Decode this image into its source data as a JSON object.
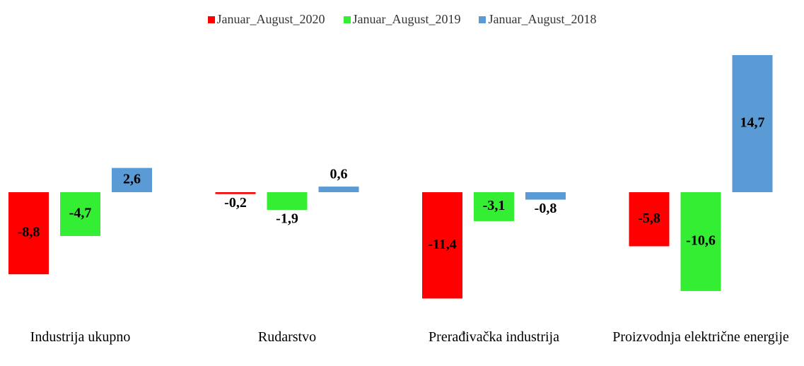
{
  "chart_data": {
    "type": "bar",
    "categories": [
      "Industrija ukupno",
      "Rudarstvo",
      "Prerađivačka industrija",
      "Proizvodnja električne energije"
    ],
    "series": [
      {
        "name": "Januar_August_2020",
        "color": "#ff0000",
        "values": [
          -8.8,
          -0.2,
          -11.4,
          -5.8
        ],
        "value_labels": [
          "-8,8",
          "-0,2",
          "-11,4",
          "-5,8"
        ]
      },
      {
        "name": "Januar_August_2019",
        "color": "#33ee33",
        "values": [
          -4.7,
          -1.9,
          -3.1,
          -10.6
        ],
        "value_labels": [
          "-4,7",
          "-1,9",
          "-3,1",
          "-10,6"
        ]
      },
      {
        "name": "Januar_August_2018",
        "color": "#5b9bd5",
        "values": [
          2.6,
          0.6,
          -0.8,
          14.7
        ],
        "value_labels": [
          "2,6",
          "0,6",
          "-0,8",
          "14,7"
        ]
      }
    ],
    "legend": "top"
  }
}
